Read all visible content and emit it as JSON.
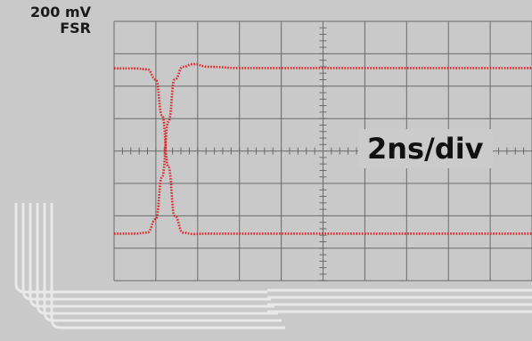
{
  "chart_data": {
    "type": "line",
    "title": "",
    "xlabel": "",
    "ylabel": "",
    "vertical_scale": {
      "value": "200 mV",
      "label": "FSR"
    },
    "timebase": "2ns/div",
    "grid": true,
    "grid_divisions": {
      "x": 10,
      "y": 8
    },
    "x_unit": "ns",
    "y_unit": "div",
    "xlim": [
      0,
      20
    ],
    "ylim": [
      0,
      8
    ],
    "series": [
      {
        "x": [
          0,
          1.0,
          1.6,
          2.0,
          2.3,
          2.6,
          2.9,
          3.3,
          3.8,
          4.5,
          6,
          8,
          10,
          12,
          14,
          16,
          18,
          20
        ],
        "values": [
          6.55,
          6.55,
          6.52,
          6.2,
          5.1,
          3.5,
          2.0,
          1.48,
          1.44,
          1.45,
          1.45,
          1.45,
          1.45,
          1.45,
          1.45,
          1.45,
          1.45,
          1.45
        ]
      },
      {
        "x": [
          0,
          1.0,
          1.6,
          2.0,
          2.3,
          2.6,
          2.9,
          3.3,
          3.8,
          4.5,
          6,
          8,
          10,
          12,
          14,
          16,
          18,
          20
        ],
        "values": [
          1.45,
          1.45,
          1.48,
          1.9,
          3.2,
          4.9,
          6.2,
          6.6,
          6.68,
          6.6,
          6.56,
          6.56,
          6.56,
          6.56,
          6.56,
          6.56,
          6.56,
          6.56
        ]
      }
    ],
    "trace_color": "#e0262b",
    "grid_color": "#6b6b6b",
    "background_color": "#c9c9c9"
  }
}
